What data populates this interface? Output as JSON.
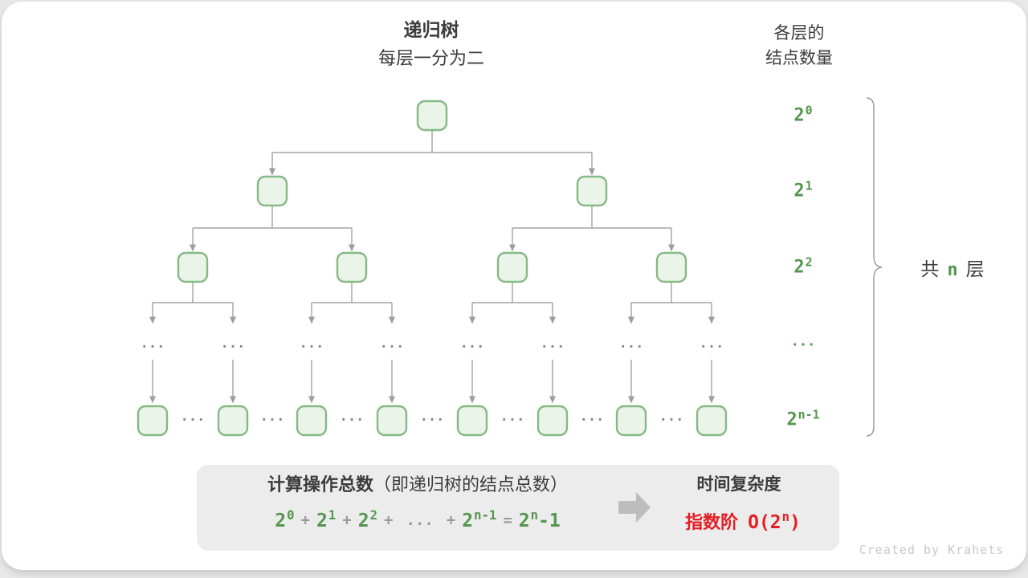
{
  "header": {
    "title": "递归树",
    "subtitle": "每层一分为二",
    "right_line1": "各层的",
    "right_line2": "结点数量"
  },
  "level_labels": [
    {
      "base": "2",
      "sup": "0"
    },
    {
      "base": "2",
      "sup": "1"
    },
    {
      "base": "2",
      "sup": "2"
    },
    {
      "base": "...",
      "sup": ""
    },
    {
      "base": "2",
      "sup": "n-1"
    }
  ],
  "tree": {
    "node_counts_per_level": [
      1,
      2,
      4,
      8
    ],
    "ellipsis": "..."
  },
  "brace_label": {
    "pre": "共",
    "var": "n",
    "post": "层"
  },
  "summary": {
    "title_main": "计算操作总数",
    "title_paren": "（即递归树的结点总数）",
    "formula_tokens": [
      {
        "t": "2",
        "sup": "0",
        "kind": "term"
      },
      {
        "t": "+",
        "kind": "op"
      },
      {
        "t": "2",
        "sup": "1",
        "kind": "term"
      },
      {
        "t": "+",
        "kind": "op"
      },
      {
        "t": "2",
        "sup": "2",
        "kind": "term"
      },
      {
        "t": "+",
        "kind": "op"
      },
      {
        "t": "...",
        "kind": "op"
      },
      {
        "t": "+",
        "kind": "op"
      },
      {
        "t": "2",
        "sup": "n-1",
        "kind": "term"
      },
      {
        "t": "=",
        "kind": "op"
      },
      {
        "t": "2",
        "sup": "n",
        "kind": "term"
      },
      {
        "t": "-1",
        "kind": "term"
      }
    ],
    "result_title": "时间复杂度",
    "result_prefix": "指数阶",
    "result_expr": {
      "pre": "O(2",
      "sup": "n",
      "post": ")"
    }
  },
  "watermark": "Created by Krahets",
  "colors": {
    "green_text": "#55964f",
    "node_fill": "#eaf4e9",
    "node_stroke": "#85b985",
    "red": "#e31e25",
    "connector_gray": "#a3a3a3",
    "box_bg": "#ececec"
  }
}
